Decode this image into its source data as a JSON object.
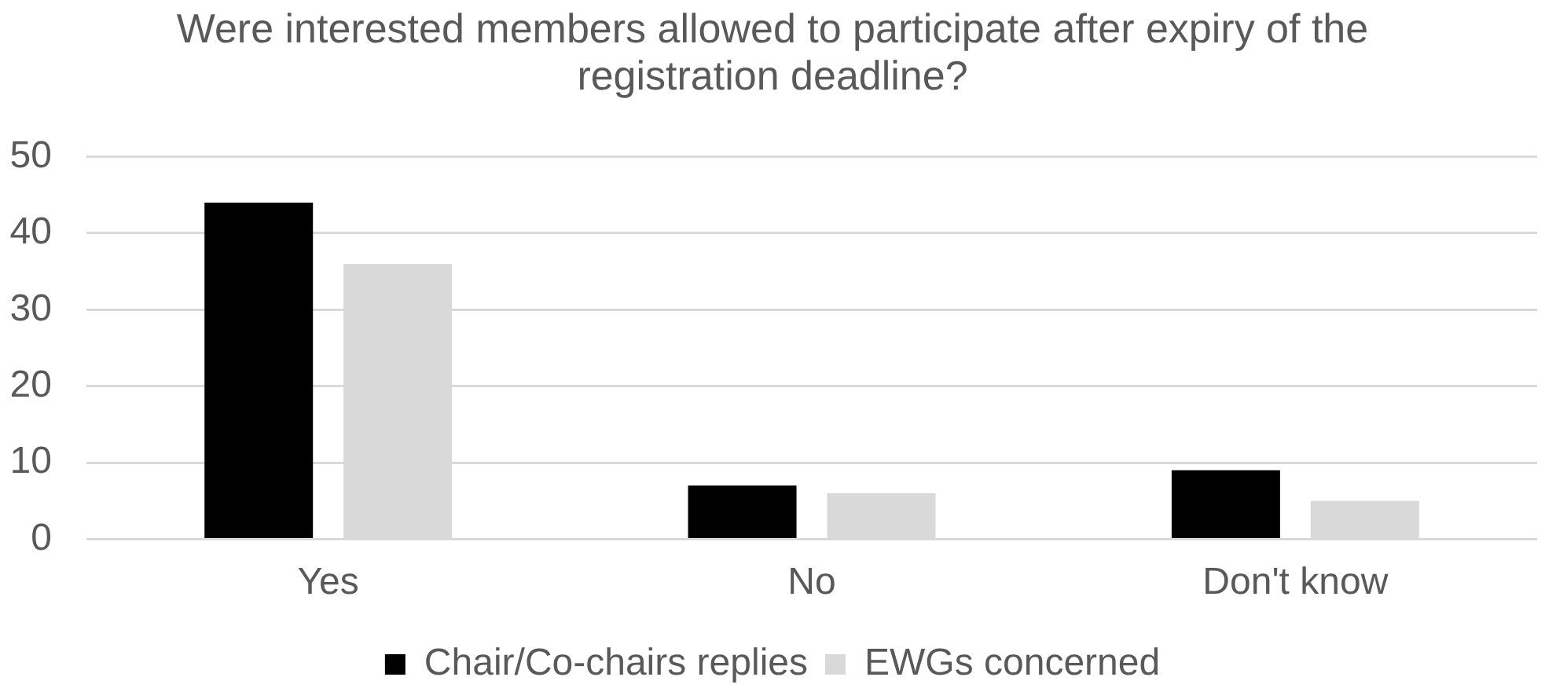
{
  "chart_data": {
    "type": "bar",
    "title": "Were interested members allowed to participate after expiry of the registration deadline?",
    "categories": [
      "Yes",
      "No",
      "Don't know"
    ],
    "series": [
      {
        "name": "Chair/Co-chairs replies",
        "color": "#000000",
        "values": [
          44,
          7,
          9
        ]
      },
      {
        "name": "EWGs concerned",
        "color": "#d9d9d9",
        "values": [
          36,
          6,
          5
        ]
      }
    ],
    "ylim": [
      0,
      50
    ],
    "yticks": [
      0,
      10,
      20,
      30,
      40,
      50
    ],
    "grid": "y",
    "legend": "bottom"
  }
}
